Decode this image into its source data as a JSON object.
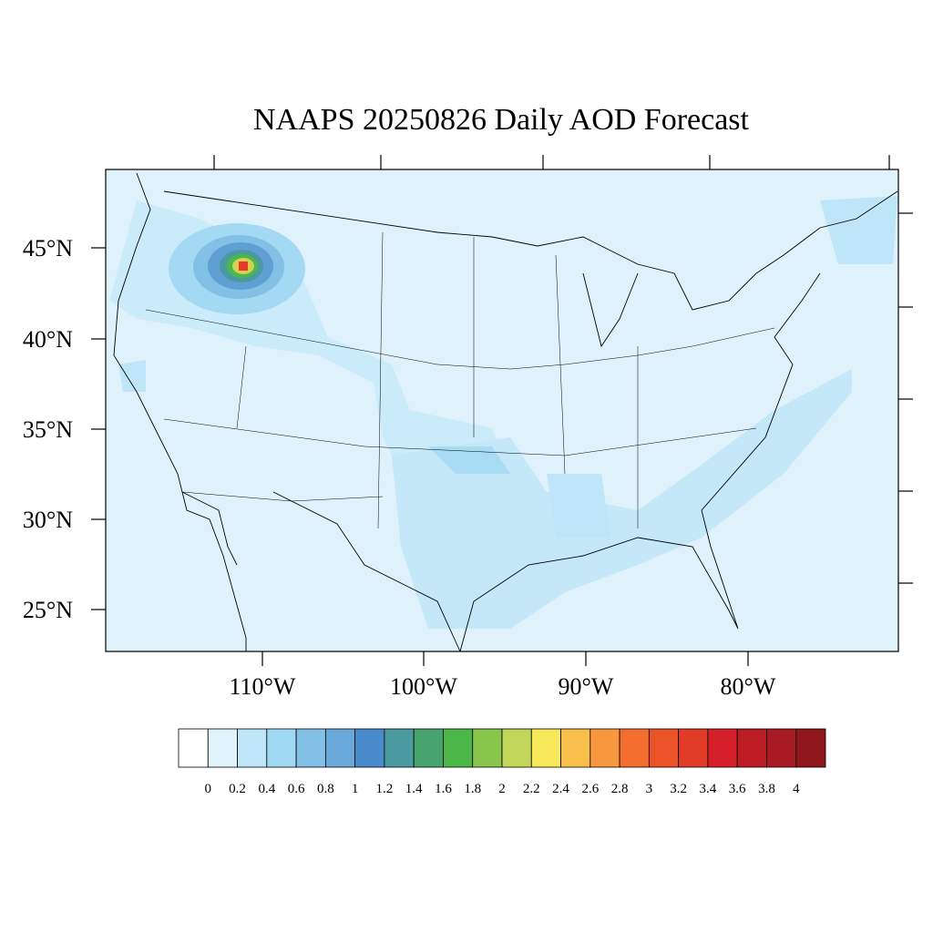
{
  "title": "NAAPS 20250826 Daily AOD Forecast",
  "lat_labels": [
    "45°N",
    "40°N",
    "35°N",
    "30°N",
    "25°N"
  ],
  "lon_labels": [
    "110°W",
    "100°W",
    "90°W",
    "80°W"
  ],
  "colorbar": {
    "labels": [
      "0",
      "0.2",
      "0.4",
      "0.6",
      "0.8",
      "1",
      "1.2",
      "1.4",
      "1.6",
      "1.8",
      "2",
      "2.2",
      "2.4",
      "2.6",
      "2.8",
      "3",
      "3.2",
      "3.4",
      "3.6",
      "3.8",
      "4"
    ],
    "colors": [
      "#ffffff",
      "#e0f3fb",
      "#bfe6f8",
      "#9fd8f3",
      "#82c0e5",
      "#68a8db",
      "#4a8ccb",
      "#4a9aa0",
      "#48a46e",
      "#4cb648",
      "#88c64c",
      "#c2d65a",
      "#f7e85a",
      "#f8c04a",
      "#f7983e",
      "#f36d2e",
      "#ea5228",
      "#e03c27",
      "#d52029",
      "#bc1c24",
      "#a81b22",
      "#8f161b"
    ]
  }
}
